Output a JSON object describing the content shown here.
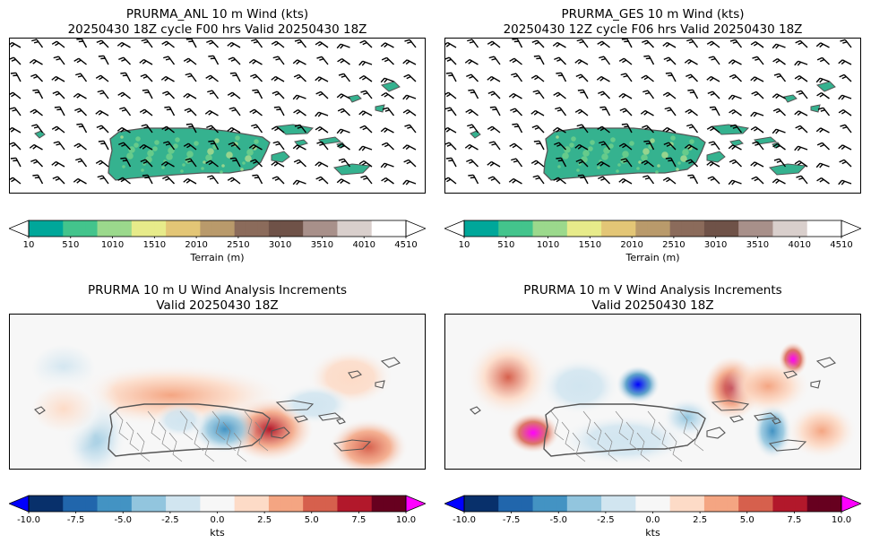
{
  "panels": {
    "p1": {
      "title_line1": "PRURMA_ANL 10 m Wind (kts)",
      "title_line2": "20250430 18Z cycle F00 hrs Valid 20250430 18Z"
    },
    "p2": {
      "title_line1": "PRURMA_GES 10 m Wind (kts)",
      "title_line2": "20250430 12Z cycle F06 hrs Valid 20250430 18Z"
    },
    "p3": {
      "title_line1": "PRURMA 10 m U Wind Analysis Increments",
      "title_line2": "Valid 20250430 18Z"
    },
    "p4": {
      "title_line1": "PRURMA 10 m V Wind Analysis Increments",
      "title_line2": "Valid 20250430 18Z"
    }
  },
  "colorbars": {
    "terrain": {
      "label": "Terrain (m)",
      "ticks": [
        "10",
        "510",
        "1010",
        "1510",
        "2010",
        "2510",
        "3010",
        "3510",
        "4010",
        "4510"
      ],
      "range": [
        10,
        4510
      ],
      "colors": [
        "#00a79a",
        "#43c48c",
        "#9bd98c",
        "#e7eb8a",
        "#e3c676",
        "#b99a6b",
        "#8b6b5b",
        "#6f5248",
        "#a8908a",
        "#d9cfcc",
        "#ffffff"
      ]
    },
    "increment": {
      "label": "kts",
      "ticks": [
        "-10.0",
        "-7.5",
        "-5.0",
        "-2.5",
        "0.0",
        "2.5",
        "5.0",
        "7.5",
        "10.0"
      ],
      "range": [
        -10,
        10
      ],
      "under_color": "#0000ff",
      "over_color": "#ff00ff",
      "colors": [
        "#08306b",
        "#2166ac",
        "#4393c3",
        "#92c5de",
        "#d1e5f0",
        "#f7f7f7",
        "#fddbc7",
        "#f4a582",
        "#d6604d",
        "#b2182b",
        "#67001f"
      ]
    }
  },
  "chart_data": [
    {
      "type": "heatmap",
      "title": "PRURMA_ANL 10 m Wind (kts) — 20250430 18Z cycle F00 hrs Valid 20250430 18Z",
      "field": "Terrain (m) shaded with 10 m wind barbs",
      "colorbar_range": [
        10,
        4510
      ],
      "barbs": "predominantly easterly to northeasterly ~10-15 kts"
    },
    {
      "type": "heatmap",
      "title": "PRURMA_GES 10 m Wind (kts) — 20250430 12Z cycle F06 hrs Valid 20250430 18Z",
      "field": "Terrain (m) shaded with 10 m wind barbs",
      "colorbar_range": [
        10,
        4510
      ],
      "barbs": "predominantly easterly to northeasterly ~10-15 kts"
    },
    {
      "type": "heatmap",
      "title": "PRURMA 10 m U Wind Analysis Increments — Valid 20250430 18Z",
      "units": "kts",
      "colorbar_range": [
        -10,
        10
      ],
      "features": [
        {
          "region": "east coast of Puerto Rico",
          "value": 7.5
        },
        {
          "region": "north of Puerto Rico",
          "value": 3.5
        },
        {
          "region": "south of St. Croix",
          "value": 6.0
        },
        {
          "region": "west of Puerto Rico (Mona Passage)",
          "value": -5.0
        },
        {
          "region": "central Puerto Rico",
          "value": -7.0
        }
      ]
    },
    {
      "type": "heatmap",
      "title": "PRURMA 10 m V Wind Analysis Increments — Valid 20250430 18Z",
      "units": "kts",
      "colorbar_range": [
        -10,
        10
      ],
      "features": [
        {
          "region": "Mona Passage (southwest)",
          "value": 10.5
        },
        {
          "region": "east of Puerto Rico",
          "value": 7.5
        },
        {
          "region": "northeast near Anegada",
          "value": 10.5
        },
        {
          "region": "central-east Puerto Rico",
          "value": -10.5
        },
        {
          "region": "north of St. Croix",
          "value": -5.5
        }
      ]
    }
  ]
}
